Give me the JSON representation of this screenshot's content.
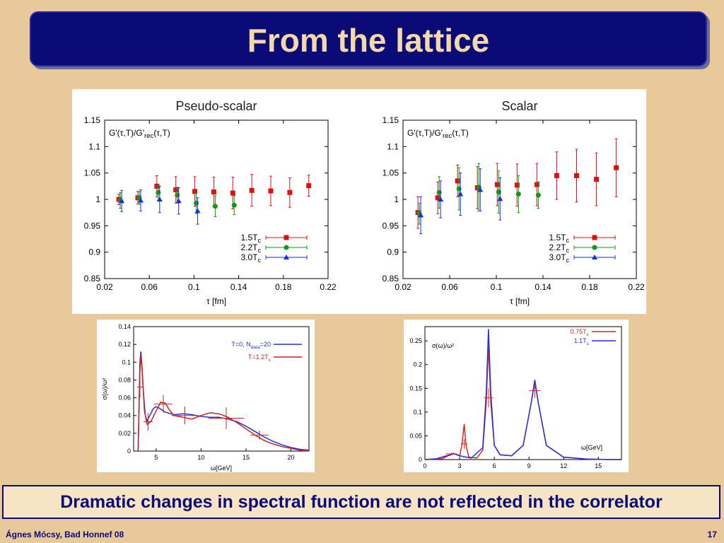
{
  "slide": {
    "title": "From the lattice",
    "caption": "Dramatic changes in spectral function are not reflected in the correlator",
    "footer_left": "Ágnes Mócsy, Bad Honnef 08",
    "page_number": "17"
  },
  "chart_data": [
    {
      "id": "ps",
      "type": "scatter",
      "title": "Pseudo-scalar",
      "xlabel": "τ [fm]",
      "ylabel_annotation": "G'(τ,T)/G'rec(τ,T)",
      "xlim": [
        0.02,
        0.22
      ],
      "ylim": [
        0.85,
        1.15
      ],
      "xticks": [
        "0.02",
        "0.06",
        "0.1",
        "0.14",
        "0.18",
        "0.22"
      ],
      "yticks": [
        "0.85",
        "0.9",
        "0.95",
        "1",
        "1.05",
        "1.1",
        "1.15"
      ],
      "legend_position": "bottom-right",
      "series": [
        {
          "name": "1.5Tc",
          "color": "#dd1111",
          "marker": "square",
          "points": [
            [
              0.034,
              1.0,
              0.01
            ],
            [
              0.051,
              1.003,
              0.012
            ],
            [
              0.068,
              1.025,
              0.02
            ],
            [
              0.085,
              1.018,
              0.025
            ],
            [
              0.102,
              1.015,
              0.028
            ],
            [
              0.119,
              1.014,
              0.028
            ],
            [
              0.136,
              1.012,
              0.03
            ],
            [
              0.153,
              1.017,
              0.03
            ],
            [
              0.17,
              1.016,
              0.028
            ],
            [
              0.187,
              1.013,
              0.028
            ],
            [
              0.204,
              1.026,
              0.02
            ]
          ]
        },
        {
          "name": "2.2Tc",
          "color": "#119911",
          "marker": "circle",
          "points": [
            [
              0.034,
              0.998,
              0.015
            ],
            [
              0.051,
              1.003,
              0.012
            ],
            [
              0.068,
              1.013,
              0.015
            ],
            [
              0.085,
              1.008,
              0.015
            ],
            [
              0.102,
              0.993,
              0.02
            ],
            [
              0.119,
              0.987,
              0.02
            ],
            [
              0.136,
              0.989,
              0.018
            ]
          ]
        },
        {
          "name": "3.0Tc",
          "color": "#1133dd",
          "marker": "triangle",
          "points": [
            [
              0.034,
              0.997,
              0.02
            ],
            [
              0.051,
              0.998,
              0.02
            ],
            [
              0.068,
              1.0,
              0.025
            ],
            [
              0.085,
              0.997,
              0.025
            ],
            [
              0.102,
              0.978,
              0.025
            ]
          ]
        }
      ]
    },
    {
      "id": "sc",
      "type": "scatter",
      "title": "Scalar",
      "xlabel": "τ [fm]",
      "ylabel_annotation": "G'(τ,T)/G'rec(τ,T)",
      "xlim": [
        0.02,
        0.22
      ],
      "ylim": [
        0.85,
        1.15
      ],
      "xticks": [
        "0.02",
        "0.06",
        "0.1",
        "0.14",
        "0.18",
        "0.22"
      ],
      "yticks": [
        "0.85",
        "0.9",
        "0.95",
        "1",
        "1.05",
        "1.1",
        "1.15"
      ],
      "legend_position": "bottom-right",
      "series": [
        {
          "name": "1.5Tc",
          "color": "#dd1111",
          "marker": "square",
          "points": [
            [
              0.034,
              0.975,
              0.03
            ],
            [
              0.051,
              1.003,
              0.03
            ],
            [
              0.068,
              1.035,
              0.03
            ],
            [
              0.085,
              1.022,
              0.04
            ],
            [
              0.102,
              1.028,
              0.04
            ],
            [
              0.119,
              1.027,
              0.04
            ],
            [
              0.136,
              1.028,
              0.04
            ],
            [
              0.153,
              1.045,
              0.045
            ],
            [
              0.17,
              1.045,
              0.05
            ],
            [
              0.187,
              1.038,
              0.05
            ],
            [
              0.204,
              1.06,
              0.055
            ]
          ]
        },
        {
          "name": "2.2Tc",
          "color": "#119911",
          "marker": "circle",
          "points": [
            [
              0.034,
              0.973,
              0.02
            ],
            [
              0.051,
              1.013,
              0.03
            ],
            [
              0.068,
              1.02,
              0.04
            ],
            [
              0.085,
              1.023,
              0.045
            ],
            [
              0.102,
              1.014,
              0.04
            ],
            [
              0.119,
              1.01,
              0.035
            ],
            [
              0.136,
              1.008,
              0.025
            ]
          ]
        },
        {
          "name": "3.0Tc",
          "color": "#1133dd",
          "marker": "triangle",
          "points": [
            [
              0.034,
              0.97,
              0.035
            ],
            [
              0.051,
              1.0,
              0.035
            ],
            [
              0.068,
              1.01,
              0.04
            ],
            [
              0.085,
              1.018,
              0.04
            ],
            [
              0.102,
              1.001,
              0.04
            ]
          ]
        }
      ]
    },
    {
      "id": "spec1",
      "type": "line",
      "ylabel": "σ(ω)/ω²",
      "xlabel": "ω[GeV]",
      "xlim": [
        2.5,
        22
      ],
      "ylim": [
        0,
        0.14
      ],
      "xticks": [
        "5",
        "10",
        "15",
        "20"
      ],
      "yticks": [
        "0",
        "0.02",
        "0.04",
        "0.06",
        "0.08",
        "0.1",
        "0.12",
        "0.14"
      ],
      "legend_position": "top-right",
      "series": [
        {
          "name": "T=0, N_data=20",
          "color": "#2233cc",
          "points": [
            [
              3.0,
              0.0
            ],
            [
              3.1,
              0.05
            ],
            [
              3.2,
              0.1
            ],
            [
              3.3,
              0.112
            ],
            [
              3.4,
              0.1
            ],
            [
              3.6,
              0.065
            ],
            [
              3.8,
              0.04
            ],
            [
              4.0,
              0.034
            ],
            [
              4.3,
              0.04
            ],
            [
              4.7,
              0.048
            ],
            [
              5.0,
              0.05
            ],
            [
              5.4,
              0.048
            ],
            [
              6.0,
              0.044
            ],
            [
              7.0,
              0.041
            ],
            [
              8.0,
              0.042
            ],
            [
              9.0,
              0.041
            ],
            [
              10.0,
              0.039
            ],
            [
              11.0,
              0.038
            ],
            [
              12.0,
              0.038
            ],
            [
              13.0,
              0.036
            ],
            [
              14.0,
              0.033
            ],
            [
              15.0,
              0.028
            ],
            [
              16.0,
              0.022
            ],
            [
              17.0,
              0.016
            ],
            [
              18.0,
              0.011
            ],
            [
              19.0,
              0.007
            ],
            [
              20.0,
              0.004
            ],
            [
              21.0,
              0.002
            ],
            [
              22.0,
              0.001
            ]
          ]
        },
        {
          "name": "T=1.2Tc",
          "color": "#cc2222",
          "points": [
            [
              3.0,
              0.0
            ],
            [
              3.1,
              0.045
            ],
            [
              3.2,
              0.09
            ],
            [
              3.3,
              0.108
            ],
            [
              3.45,
              0.09
            ],
            [
              3.7,
              0.045
            ],
            [
              4.0,
              0.03
            ],
            [
              4.4,
              0.033
            ],
            [
              5.0,
              0.045
            ],
            [
              5.5,
              0.055
            ],
            [
              6.0,
              0.054
            ],
            [
              6.5,
              0.046
            ],
            [
              7.0,
              0.04
            ],
            [
              8.0,
              0.038
            ],
            [
              9.0,
              0.036
            ],
            [
              10.0,
              0.04
            ],
            [
              11.0,
              0.043
            ],
            [
              12.0,
              0.042
            ],
            [
              13.0,
              0.038
            ],
            [
              14.0,
              0.032
            ],
            [
              15.0,
              0.025
            ],
            [
              16.0,
              0.018
            ],
            [
              17.0,
              0.012
            ],
            [
              18.0,
              0.008
            ],
            [
              19.0,
              0.005
            ],
            [
              20.0,
              0.003
            ],
            [
              21.0,
              0.001
            ],
            [
              22.0,
              0.0
            ]
          ]
        }
      ],
      "errorbars": [
        [
          3.2,
          0.072,
          0.012,
          0.3
        ],
        [
          4.1,
          0.033,
          0.01,
          0.5
        ],
        [
          5.8,
          0.053,
          0.01,
          1.0
        ],
        [
          8.2,
          0.04,
          0.01,
          1.5
        ],
        [
          12.8,
          0.037,
          0.012,
          2.0
        ],
        [
          16.5,
          0.018,
          0.005,
          1.0
        ]
      ]
    },
    {
      "id": "spec2",
      "type": "line",
      "ylabel": "σ(ω)/ω²",
      "xlabel": "ω[GeV]",
      "xlim": [
        0,
        17
      ],
      "ylim": [
        0,
        0.28
      ],
      "xticks": [
        "0",
        "3",
        "6",
        "9",
        "12",
        "15"
      ],
      "yticks": [
        "0",
        "0.05",
        "0.1",
        "0.15",
        "0.2",
        "0.25"
      ],
      "legend_position": "top-right",
      "series": [
        {
          "name": "0.75Tc",
          "color": "#dd2222",
          "points": [
            [
              0.0,
              0.0
            ],
            [
              1.5,
              0.002
            ],
            [
              2.0,
              0.008
            ],
            [
              2.5,
              0.012
            ],
            [
              3.0,
              0.008
            ],
            [
              3.2,
              0.03
            ],
            [
              3.4,
              0.075
            ],
            [
              3.55,
              0.03
            ],
            [
              3.8,
              0.005
            ],
            [
              4.5,
              0.003
            ],
            [
              5.0,
              0.02
            ],
            [
              5.3,
              0.12
            ],
            [
              5.5,
              0.24
            ],
            [
              5.7,
              0.12
            ],
            [
              6.0,
              0.03
            ],
            [
              6.5,
              0.01
            ],
            [
              7.5,
              0.008
            ],
            [
              8.5,
              0.03
            ],
            [
              9.2,
              0.12
            ],
            [
              9.5,
              0.165
            ],
            [
              9.8,
              0.12
            ],
            [
              10.5,
              0.03
            ],
            [
              12.0,
              0.005
            ],
            [
              14.0,
              0.001
            ],
            [
              16.0,
              0.0
            ],
            [
              17.0,
              0.0
            ]
          ]
        },
        {
          "name": "1.1Tc",
          "color": "#2233dd",
          "points": [
            [
              0.0,
              0.0
            ],
            [
              1.0,
              0.002
            ],
            [
              2.0,
              0.009
            ],
            [
              2.5,
              0.013
            ],
            [
              3.0,
              0.008
            ],
            [
              4.0,
              0.003
            ],
            [
              5.0,
              0.025
            ],
            [
              5.3,
              0.14
            ],
            [
              5.5,
              0.275
            ],
            [
              5.7,
              0.14
            ],
            [
              6.0,
              0.03
            ],
            [
              6.5,
              0.01
            ],
            [
              7.5,
              0.008
            ],
            [
              8.5,
              0.03
            ],
            [
              9.2,
              0.12
            ],
            [
              9.5,
              0.168
            ],
            [
              9.8,
              0.12
            ],
            [
              10.5,
              0.03
            ],
            [
              12.0,
              0.005
            ],
            [
              14.0,
              0.001
            ],
            [
              16.0,
              0.0
            ],
            [
              17.0,
              0.0
            ]
          ]
        }
      ],
      "errorbars": [
        [
          2.3,
          0.012,
          0.003,
          0.5
        ],
        [
          3.4,
          0.033,
          0.01,
          0.3
        ],
        [
          5.5,
          0.13,
          0.02,
          0.4
        ],
        [
          9.5,
          0.145,
          0.015,
          0.5
        ]
      ]
    }
  ]
}
